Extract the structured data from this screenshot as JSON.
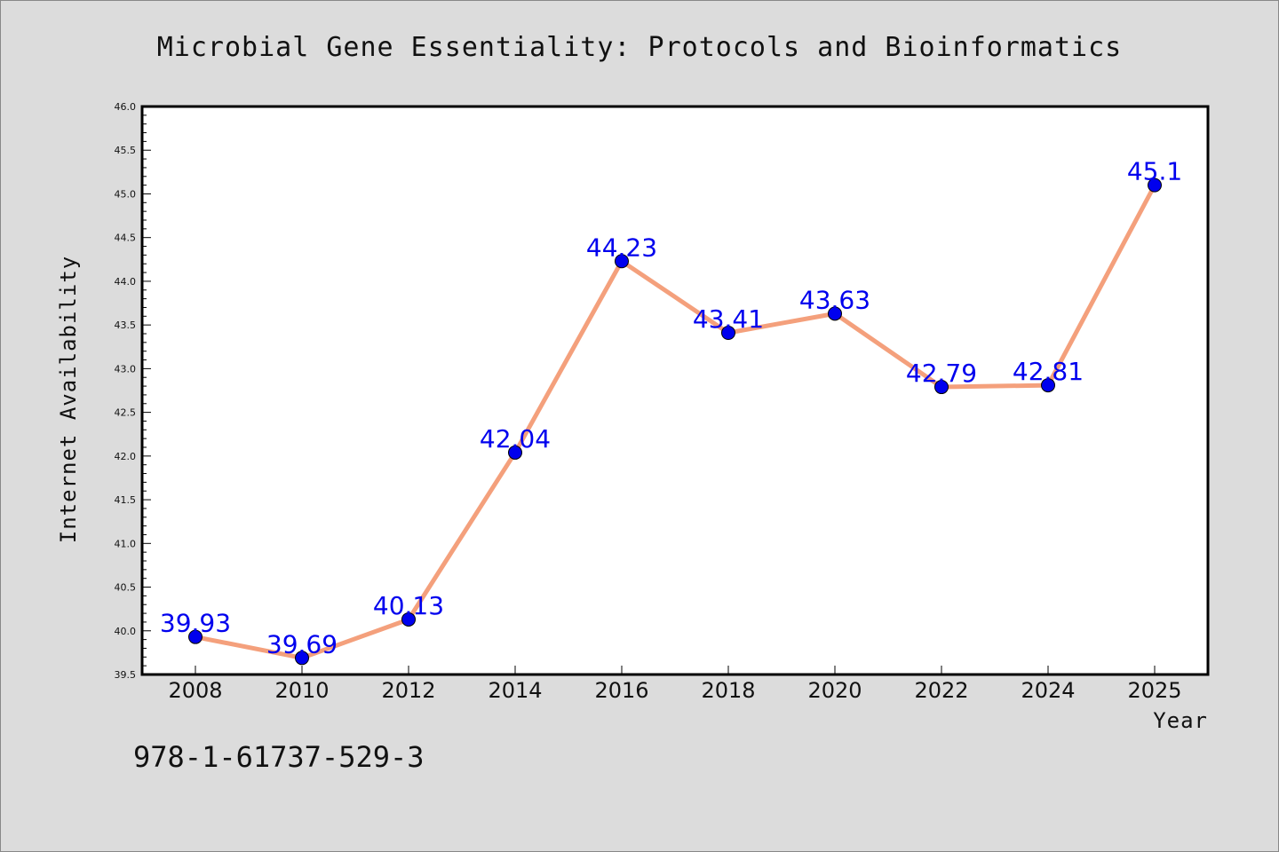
{
  "chart_data": {
    "type": "line",
    "title": "Microbial Gene Essentiality: Protocols and Bioinformatics",
    "xlabel": "Year",
    "ylabel": "Internet Availability",
    "categories": [
      "2008",
      "2010",
      "2012",
      "2014",
      "2016",
      "2018",
      "2020",
      "2022",
      "2024",
      "2025"
    ],
    "series": [
      {
        "values": [
          39.93,
          39.69,
          40.13,
          42.04,
          44.23,
          43.41,
          43.63,
          42.79,
          42.81,
          45.1
        ],
        "labels": [
          "39.93",
          "39.69",
          "40.13",
          "42.04",
          "44.23",
          "43.41",
          "43.63",
          "42.79",
          "42.81",
          "45.1"
        ],
        "line_color": "#f4a07c",
        "marker_color": "#0000ee"
      }
    ],
    "ylim": [
      39.5,
      46.0
    ],
    "yticks": [
      "39.5",
      "40.0",
      "40.5",
      "41.0",
      "41.5",
      "42.0",
      "42.5",
      "43.0",
      "43.5",
      "44.0",
      "44.5",
      "45.0",
      "45.5",
      "46.0"
    ],
    "grid": false,
    "legend": "none"
  },
  "footer": {
    "isbn": "978-1-61737-529-3"
  },
  "colors": {
    "background": "#dcdcdc",
    "plot_area": "#ffffff",
    "axis": "#000000"
  }
}
